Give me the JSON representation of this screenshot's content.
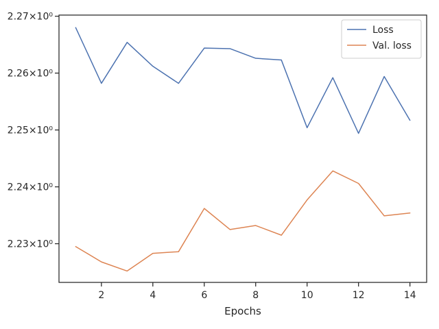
{
  "chart_data": {
    "type": "line",
    "xlabel": "Epochs",
    "ylabel": "",
    "title": "",
    "xlim": [
      0.35,
      14.65
    ],
    "ylim": [
      2.2232,
      2.2702
    ],
    "x_ticks": [
      2,
      4,
      6,
      8,
      10,
      12,
      14
    ],
    "y_ticks": [
      2.23,
      2.24,
      2.25,
      2.26,
      2.27
    ],
    "y_tick_labels": [
      "2.23×10⁰",
      "2.24×10⁰",
      "2.25×10⁰",
      "2.26×10⁰",
      "2.27×10⁰"
    ],
    "x": [
      1,
      2,
      3,
      4,
      5,
      6,
      7,
      8,
      9,
      10,
      11,
      12,
      13,
      14
    ],
    "legend_position": "top-right",
    "grid": false,
    "series": [
      {
        "name": "Loss",
        "color": "#4c72b0",
        "values": [
          2.268,
          2.2582,
          2.2654,
          2.2612,
          2.2582,
          2.2644,
          2.2643,
          2.2626,
          2.2623,
          2.2504,
          2.2592,
          2.2494,
          2.2594,
          2.2517
        ]
      },
      {
        "name": "Val. loss",
        "color": "#dd8452",
        "values": [
          2.2295,
          2.2268,
          2.2252,
          2.2283,
          2.2286,
          2.2362,
          2.2325,
          2.2332,
          2.2315,
          2.2377,
          2.2428,
          2.2406,
          2.2349,
          2.2354
        ]
      }
    ]
  }
}
